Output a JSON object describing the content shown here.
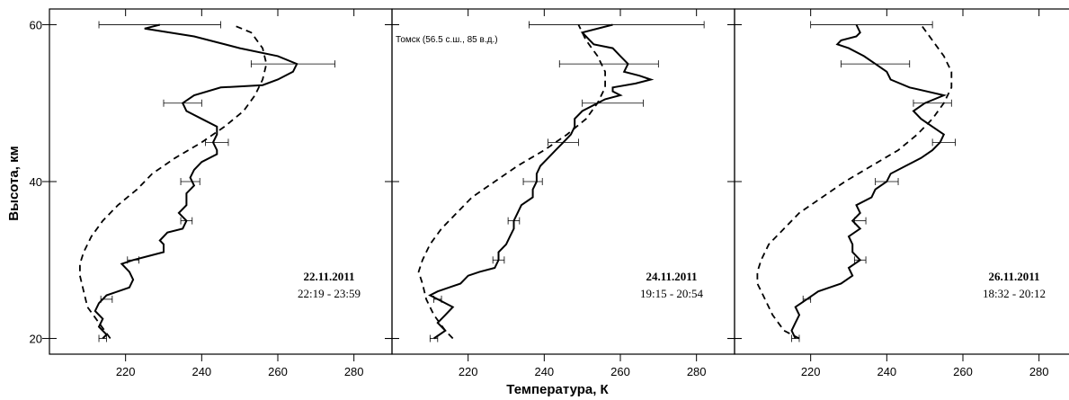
{
  "chart_data": {
    "type": "line",
    "xlabel": "Температура, К",
    "ylabel": "Высота, км",
    "xlim": [
      200,
      290
    ],
    "ylim": [
      18,
      62
    ],
    "xticks": [
      220,
      240,
      260,
      280
    ],
    "yticks": [
      20,
      40,
      60
    ],
    "grid": false,
    "annotation": "Томск (56.5 с.ш., 85 в.д.)",
    "panels": [
      {
        "date": "22.11.2011",
        "time": "22:19 - 23:59",
        "series": [
          {
            "style": "solid",
            "points": [
              [
                214,
                20
              ],
              [
                215,
                20.5
              ],
              [
                213,
                21.5
              ],
              [
                214,
                22.5
              ],
              [
                212,
                23.5
              ],
              [
                213,
                24.5
              ],
              [
                215,
                25.5
              ],
              [
                218,
                26
              ],
              [
                221,
                26.5
              ],
              [
                222,
                27.5
              ],
              [
                221,
                28.5
              ],
              [
                219,
                29.5
              ],
              [
                222,
                30
              ],
              [
                226,
                30.5
              ],
              [
                230,
                31
              ],
              [
                230,
                32
              ],
              [
                229,
                32.5
              ],
              [
                231,
                33.5
              ],
              [
                235,
                34
              ],
              [
                236,
                35
              ],
              [
                234,
                36
              ],
              [
                236,
                37
              ],
              [
                236,
                38.5
              ],
              [
                238,
                39.5
              ],
              [
                237,
                40.5
              ],
              [
                238,
                41.5
              ],
              [
                240,
                42.5
              ],
              [
                244,
                43.5
              ],
              [
                244,
                44
              ],
              [
                243,
                45
              ],
              [
                244,
                46
              ],
              [
                244,
                47
              ],
              [
                240,
                48
              ],
              [
                236,
                49
              ],
              [
                235,
                50
              ],
              [
                238,
                51
              ],
              [
                245,
                52
              ],
              [
                256,
                52.3
              ],
              [
                260,
                53
              ],
              [
                264,
                54
              ],
              [
                265,
                55
              ],
              [
                260,
                56
              ],
              [
                250,
                57
              ],
              [
                238,
                58.5
              ],
              [
                225,
                59.5
              ],
              [
                229,
                60
              ]
            ]
          },
          {
            "style": "dashed",
            "points": [
              [
                216,
                20
              ],
              [
                213,
                22
              ],
              [
                210,
                24
              ],
              [
                209,
                26
              ],
              [
                208,
                28
              ],
              [
                208,
                29.5
              ],
              [
                209,
                31
              ],
              [
                211,
                33
              ],
              [
                214,
                35
              ],
              [
                218,
                37
              ],
              [
                223,
                39
              ],
              [
                227,
                41
              ],
              [
                233,
                43
              ],
              [
                240,
                45
              ],
              [
                246,
                47
              ],
              [
                251,
                49
              ],
              [
                254,
                51
              ],
              [
                256,
                53
              ],
              [
                257,
                55
              ],
              [
                256,
                57
              ],
              [
                253,
                59
              ],
              [
                248,
                60
              ]
            ]
          }
        ],
        "errorbars": [
          {
            "y": 20,
            "x": 214,
            "err": 1
          },
          {
            "y": 25,
            "x": 215,
            "err": 1.5
          },
          {
            "y": 30,
            "x": 222,
            "err": 1.5
          },
          {
            "y": 35,
            "x": 236,
            "err": 1.5
          },
          {
            "y": 40,
            "x": 237,
            "err": 2.5
          },
          {
            "y": 45,
            "x": 244,
            "err": 3
          },
          {
            "y": 50,
            "x": 235,
            "err": 5
          },
          {
            "y": 55,
            "x": 264,
            "err": 11
          },
          {
            "y": 60,
            "x": 229,
            "err": 16
          }
        ]
      },
      {
        "date": "24.11.2011",
        "time": "19:15 - 20:54",
        "series": [
          {
            "style": "solid",
            "points": [
              [
                211,
                20
              ],
              [
                214,
                21
              ],
              [
                212,
                22
              ],
              [
                214,
                23
              ],
              [
                216,
                24
              ],
              [
                212,
                25
              ],
              [
                210,
                25.5
              ],
              [
                212,
                26
              ],
              [
                215,
                26.5
              ],
              [
                218,
                27
              ],
              [
                220,
                28
              ],
              [
                223,
                28.5
              ],
              [
                227,
                29
              ],
              [
                228,
                30
              ],
              [
                228,
                31
              ],
              [
                230,
                32
              ],
              [
                231,
                33
              ],
              [
                232,
                34
              ],
              [
                232,
                35
              ],
              [
                233,
                36
              ],
              [
                234,
                37
              ],
              [
                237,
                38
              ],
              [
                237,
                39
              ],
              [
                238,
                40
              ],
              [
                238,
                41
              ],
              [
                239,
                42
              ],
              [
                241,
                43
              ],
              [
                243,
                44
              ],
              [
                245,
                45
              ],
              [
                247,
                46
              ],
              [
                248,
                47
              ],
              [
                248,
                48
              ],
              [
                250,
                49
              ],
              [
                254,
                50
              ],
              [
                256,
                50.5
              ],
              [
                260,
                51
              ],
              [
                258,
                51.5
              ],
              [
                258,
                52
              ],
              [
                264,
                52.5
              ],
              [
                268,
                53
              ],
              [
                265,
                53.5
              ],
              [
                261,
                54
              ],
              [
                262,
                55
              ],
              [
                260,
                56
              ],
              [
                258,
                57
              ],
              [
                253,
                57.5
              ],
              [
                252,
                58
              ],
              [
                250,
                59
              ],
              [
                258,
                60
              ]
            ]
          },
          {
            "style": "dashed",
            "points": [
              [
                216,
                20
              ],
              [
                214,
                21
              ],
              [
                211,
                23
              ],
              [
                209,
                25
              ],
              [
                208,
                27
              ],
              [
                207,
                28.5
              ],
              [
                208,
                30
              ],
              [
                210,
                32
              ],
              [
                213,
                34
              ],
              [
                217,
                36
              ],
              [
                221,
                38
              ],
              [
                227,
                40
              ],
              [
                233,
                42
              ],
              [
                240,
                44
              ],
              [
                246,
                46
              ],
              [
                251,
                48
              ],
              [
                254,
                50
              ],
              [
                256,
                52
              ],
              [
                256,
                54
              ],
              [
                254,
                56
              ],
              [
                251,
                58
              ],
              [
                249,
                60
              ]
            ]
          }
        ],
        "errorbars": [
          {
            "y": 20,
            "x": 211,
            "err": 1
          },
          {
            "y": 25,
            "x": 212,
            "err": 1
          },
          {
            "y": 30,
            "x": 228,
            "err": 1.5
          },
          {
            "y": 35,
            "x": 232,
            "err": 1.5
          },
          {
            "y": 40,
            "x": 237,
            "err": 2.5
          },
          {
            "y": 45,
            "x": 245,
            "err": 4
          },
          {
            "y": 50,
            "x": 258,
            "err": 8
          },
          {
            "y": 55,
            "x": 257,
            "err": 13
          },
          {
            "y": 60,
            "x": 259,
            "err": 23
          }
        ]
      },
      {
        "date": "26.11.2011",
        "time": "18:32 - 20:12",
        "series": [
          {
            "style": "solid",
            "points": [
              [
                216,
                20
              ],
              [
                215,
                21
              ],
              [
                216,
                22
              ],
              [
                217,
                23
              ],
              [
                216,
                24
              ],
              [
                219,
                25
              ],
              [
                222,
                26
              ],
              [
                225,
                26.5
              ],
              [
                228,
                27
              ],
              [
                231,
                28
              ],
              [
                230,
                29
              ],
              [
                233,
                30
              ],
              [
                231,
                31
              ],
              [
                231,
                32
              ],
              [
                230,
                33
              ],
              [
                233,
                34
              ],
              [
                231,
                35
              ],
              [
                233,
                36
              ],
              [
                232,
                37
              ],
              [
                236,
                38
              ],
              [
                237,
                39
              ],
              [
                240,
                40
              ],
              [
                241,
                41
              ],
              [
                245,
                42
              ],
              [
                249,
                43
              ],
              [
                252,
                44
              ],
              [
                254,
                45
              ],
              [
                255,
                46
              ],
              [
                252,
                47
              ],
              [
                249,
                48
              ],
              [
                247,
                49
              ],
              [
                250,
                50
              ],
              [
                255,
                51
              ],
              [
                246,
                52
              ],
              [
                241,
                53
              ],
              [
                240,
                54
              ],
              [
                237,
                55
              ],
              [
                234,
                56
              ],
              [
                230,
                57
              ],
              [
                227,
                57.5
              ],
              [
                228,
                58
              ],
              [
                232,
                58.5
              ],
              [
                233,
                59
              ],
              [
                232,
                60
              ]
            ]
          },
          {
            "style": "dashed",
            "points": [
              [
                217,
                20
              ],
              [
                213,
                21
              ],
              [
                210,
                23
              ],
              [
                208,
                25
              ],
              [
                206,
                27
              ],
              [
                206,
                28.5
              ],
              [
                207,
                30
              ],
              [
                209,
                32
              ],
              [
                213,
                34
              ],
              [
                217,
                36
              ],
              [
                223,
                38
              ],
              [
                229,
                40
              ],
              [
                236,
                42
              ],
              [
                243,
                44
              ],
              [
                248,
                46
              ],
              [
                252,
                48
              ],
              [
                255,
                50
              ],
              [
                257,
                52
              ],
              [
                257,
                54
              ],
              [
                255,
                56
              ],
              [
                252,
                58
              ],
              [
                249,
                60
              ]
            ]
          }
        ],
        "errorbars": [
          {
            "y": 20,
            "x": 216,
            "err": 1
          },
          {
            "y": 25,
            "x": 219,
            "err": 1
          },
          {
            "y": 30,
            "x": 233,
            "err": 1.5
          },
          {
            "y": 35,
            "x": 233,
            "err": 1.5
          },
          {
            "y": 40,
            "x": 240,
            "err": 3
          },
          {
            "y": 45,
            "x": 255,
            "err": 3
          },
          {
            "y": 50,
            "x": 252,
            "err": 5
          },
          {
            "y": 55,
            "x": 237,
            "err": 9
          },
          {
            "y": 60,
            "x": 236,
            "err": 16
          }
        ]
      }
    ]
  }
}
